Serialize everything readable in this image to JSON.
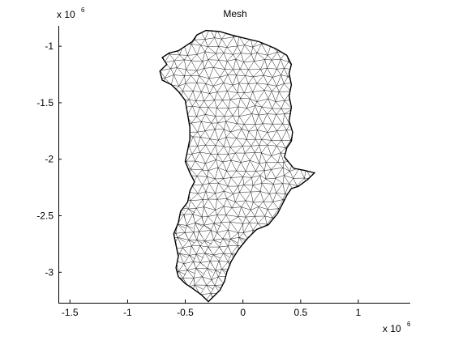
{
  "chart_data": {
    "type": "mesh",
    "title": "Mesh",
    "x_multiplier": {
      "base": "x 10",
      "exponent": "6"
    },
    "y_multiplier": {
      "base": "x 10",
      "exponent": "6"
    },
    "xlim": [
      -1.6,
      1.45
    ],
    "ylim": [
      -3.27,
      -0.82
    ],
    "x_ticks": [
      {
        "value": -1.5,
        "label": "-1.5"
      },
      {
        "value": -1,
        "label": "-1"
      },
      {
        "value": -0.5,
        "label": "-0.5"
      },
      {
        "value": 0,
        "label": "0"
      },
      {
        "value": 0.5,
        "label": "0.5"
      },
      {
        "value": 1,
        "label": "1"
      }
    ],
    "y_ticks": [
      {
        "value": -1,
        "label": "-1"
      },
      {
        "value": -1.5,
        "label": "-1.5"
      },
      {
        "value": -2,
        "label": "-2"
      },
      {
        "value": -2.5,
        "label": "-2.5"
      },
      {
        "value": -3,
        "label": "-3"
      }
    ],
    "outline": [
      [
        -0.32,
        -0.86
      ],
      [
        -0.2,
        -0.87
      ],
      [
        -0.1,
        -0.9
      ],
      [
        0.02,
        -0.93
      ],
      [
        0.14,
        -0.96
      ],
      [
        0.28,
        -1.02
      ],
      [
        0.38,
        -1.08
      ],
      [
        0.42,
        -1.16
      ],
      [
        0.4,
        -1.24
      ],
      [
        0.42,
        -1.34
      ],
      [
        0.4,
        -1.44
      ],
      [
        0.42,
        -1.54
      ],
      [
        0.4,
        -1.66
      ],
      [
        0.43,
        -1.76
      ],
      [
        0.42,
        -1.84
      ],
      [
        0.38,
        -1.9
      ],
      [
        0.36,
        -1.98
      ],
      [
        0.44,
        -2.08
      ],
      [
        0.54,
        -2.1
      ],
      [
        0.62,
        -2.12
      ],
      [
        0.56,
        -2.18
      ],
      [
        0.48,
        -2.24
      ],
      [
        0.42,
        -2.26
      ],
      [
        0.38,
        -2.32
      ],
      [
        0.34,
        -2.4
      ],
      [
        0.3,
        -2.48
      ],
      [
        0.22,
        -2.58
      ],
      [
        0.12,
        -2.62
      ],
      [
        0.04,
        -2.7
      ],
      [
        -0.04,
        -2.8
      ],
      [
        -0.1,
        -2.9
      ],
      [
        -0.14,
        -3.0
      ],
      [
        -0.16,
        -3.08
      ],
      [
        -0.2,
        -3.16
      ],
      [
        -0.26,
        -3.22
      ],
      [
        -0.3,
        -3.26
      ],
      [
        -0.36,
        -3.2
      ],
      [
        -0.44,
        -3.14
      ],
      [
        -0.5,
        -3.1
      ],
      [
        -0.56,
        -3.04
      ],
      [
        -0.58,
        -2.96
      ],
      [
        -0.56,
        -2.86
      ],
      [
        -0.58,
        -2.76
      ],
      [
        -0.6,
        -2.66
      ],
      [
        -0.56,
        -2.56
      ],
      [
        -0.54,
        -2.46
      ],
      [
        -0.48,
        -2.38
      ],
      [
        -0.46,
        -2.28
      ],
      [
        -0.42,
        -2.2
      ],
      [
        -0.46,
        -2.12
      ],
      [
        -0.5,
        -2.02
      ],
      [
        -0.48,
        -1.92
      ],
      [
        -0.46,
        -1.82
      ],
      [
        -0.46,
        -1.72
      ],
      [
        -0.48,
        -1.6
      ],
      [
        -0.5,
        -1.48
      ],
      [
        -0.56,
        -1.4
      ],
      [
        -0.62,
        -1.34
      ],
      [
        -0.7,
        -1.3
      ],
      [
        -0.72,
        -1.22
      ],
      [
        -0.66,
        -1.16
      ],
      [
        -0.7,
        -1.1
      ],
      [
        -0.64,
        -1.06
      ],
      [
        -0.56,
        -1.04
      ],
      [
        -0.5,
        -1.0
      ],
      [
        -0.44,
        -0.96
      ],
      [
        -0.4,
        -0.9
      ]
    ]
  }
}
